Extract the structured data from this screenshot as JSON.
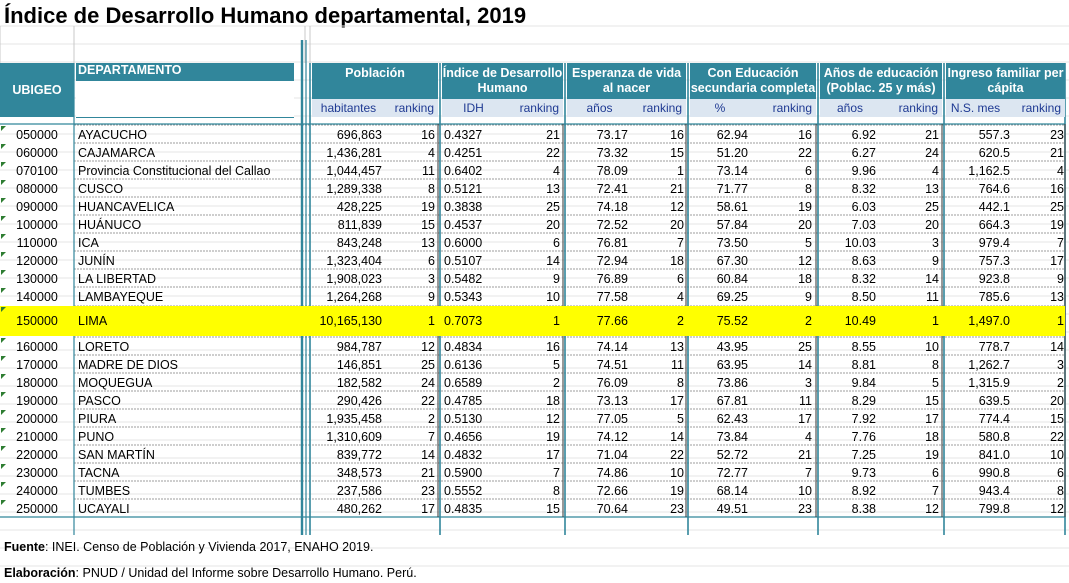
{
  "title": "Índice de Desarrollo Humano departamental, 2019",
  "headers": {
    "ubigeo": "UBIGEO",
    "departamento": "DEPARTAMENTO",
    "poblacion": "Población",
    "idh": "Índice de Desarrollo Humano",
    "esperanza": "Esperanza de vida al nacer",
    "educacion": "Con Educación secundaria completa",
    "anos": "Años de educación (Poblac. 25 y más)",
    "ingreso": "Ingreso familiar per cápita"
  },
  "subheaders": {
    "poblacion_unit": "habitantes",
    "idh_unit": "IDH",
    "esperanza_unit": "años",
    "educacion_unit": "%",
    "anos_unit": "años",
    "ingreso_unit": "N.S. mes",
    "ranking": "ranking"
  },
  "rows": [
    [
      "050000",
      "AYACUCHO",
      "696,863",
      "16",
      "0.4327",
      "21",
      "73.17",
      "16",
      "62.94",
      "16",
      "6.92",
      "21",
      "557.3",
      "23"
    ],
    [
      "060000",
      "CAJAMARCA",
      "1,436,281",
      "4",
      "0.4251",
      "22",
      "73.32",
      "15",
      "51.20",
      "22",
      "6.27",
      "24",
      "620.5",
      "21"
    ],
    [
      "070100",
      "Provincia Constitucional del Callao",
      "1,044,457",
      "11",
      "0.6402",
      "4",
      "78.09",
      "1",
      "73.14",
      "6",
      "9.96",
      "4",
      "1,162.5",
      "4"
    ],
    [
      "080000",
      "CUSCO",
      "1,289,338",
      "8",
      "0.5121",
      "13",
      "72.41",
      "21",
      "71.77",
      "8",
      "8.32",
      "13",
      "764.6",
      "16"
    ],
    [
      "090000",
      "HUANCAVELICA",
      "428,225",
      "19",
      "0.3838",
      "25",
      "74.18",
      "12",
      "58.61",
      "19",
      "6.03",
      "25",
      "442.1",
      "25"
    ],
    [
      "100000",
      "HUÁNUCO",
      "811,839",
      "15",
      "0.4537",
      "20",
      "72.52",
      "20",
      "57.84",
      "20",
      "7.03",
      "20",
      "664.3",
      "19"
    ],
    [
      "110000",
      "ICA",
      "843,248",
      "13",
      "0.6000",
      "6",
      "76.81",
      "7",
      "73.50",
      "5",
      "10.03",
      "3",
      "979.4",
      "7"
    ],
    [
      "120000",
      "JUNÍN",
      "1,323,404",
      "6",
      "0.5107",
      "14",
      "72.94",
      "18",
      "67.30",
      "12",
      "8.63",
      "9",
      "757.3",
      "17"
    ],
    [
      "130000",
      "LA LIBERTAD",
      "1,908,023",
      "3",
      "0.5482",
      "9",
      "76.89",
      "6",
      "60.84",
      "18",
      "8.32",
      "14",
      "923.8",
      "9"
    ],
    [
      "140000",
      "LAMBAYEQUE",
      "1,264,268",
      "9",
      "0.5343",
      "10",
      "77.58",
      "4",
      "69.25",
      "9",
      "8.50",
      "11",
      "785.6",
      "13"
    ],
    [
      "150000",
      "LIMA",
      "10,165,130",
      "1",
      "0.7073",
      "1",
      "77.66",
      "2",
      "75.52",
      "2",
      "10.49",
      "1",
      "1,497.0",
      "1"
    ],
    [
      "160000",
      "LORETO",
      "984,787",
      "12",
      "0.4834",
      "16",
      "74.14",
      "13",
      "43.95",
      "25",
      "8.55",
      "10",
      "778.7",
      "14"
    ],
    [
      "170000",
      "MADRE DE DIOS",
      "146,851",
      "25",
      "0.6136",
      "5",
      "74.51",
      "11",
      "63.95",
      "14",
      "8.81",
      "8",
      "1,262.7",
      "3"
    ],
    [
      "180000",
      "MOQUEGUA",
      "182,582",
      "24",
      "0.6589",
      "2",
      "76.09",
      "8",
      "73.86",
      "3",
      "9.84",
      "5",
      "1,315.9",
      "2"
    ],
    [
      "190000",
      "PASCO",
      "290,426",
      "22",
      "0.4785",
      "18",
      "73.13",
      "17",
      "67.81",
      "11",
      "8.29",
      "15",
      "639.5",
      "20"
    ],
    [
      "200000",
      "PIURA",
      "1,935,458",
      "2",
      "0.5130",
      "12",
      "77.05",
      "5",
      "62.43",
      "17",
      "7.92",
      "17",
      "774.4",
      "15"
    ],
    [
      "210000",
      "PUNO",
      "1,310,609",
      "7",
      "0.4656",
      "19",
      "74.12",
      "14",
      "73.84",
      "4",
      "7.76",
      "18",
      "580.8",
      "22"
    ],
    [
      "220000",
      "SAN MARTÍN",
      "839,772",
      "14",
      "0.4832",
      "17",
      "71.04",
      "22",
      "52.72",
      "21",
      "7.25",
      "19",
      "841.0",
      "10"
    ],
    [
      "230000",
      "TACNA",
      "348,573",
      "21",
      "0.5900",
      "7",
      "74.86",
      "10",
      "72.77",
      "7",
      "9.73",
      "6",
      "990.8",
      "6"
    ],
    [
      "240000",
      "TUMBES",
      "237,586",
      "23",
      "0.5552",
      "8",
      "72.66",
      "19",
      "68.14",
      "10",
      "8.92",
      "7",
      "943.4",
      "8"
    ],
    [
      "250000",
      "UCAYALI",
      "480,262",
      "17",
      "0.4835",
      "15",
      "70.64",
      "23",
      "49.51",
      "23",
      "8.38",
      "12",
      "799.8",
      "12"
    ]
  ],
  "highlight_row": "LIMA",
  "colors": {
    "header_bg": "#31869B",
    "subheader_bg": "#DCE6F1",
    "highlight": "#FFFF00"
  },
  "footer": {
    "fuente_label": "Fuente",
    "fuente_text": ": INEI. Censo de Población y Vivienda 2017, ENAHO 2019.",
    "elaboracion_label": "Elaboración",
    "elaboracion_text": ": PNUD / Unidad del Informe sobre Desarrollo Humano. Perú."
  }
}
